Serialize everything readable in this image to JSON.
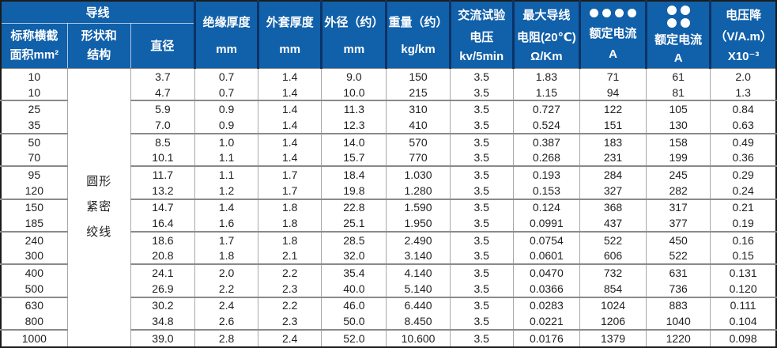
{
  "colors": {
    "header_bg": "#1160aa",
    "header_text": "#ffffff",
    "header_divider": "#0b3365",
    "body_text": "#1f1f1f",
    "grid_line": "#a8a8a8",
    "group_line": "#8a8a8a",
    "outer_border": "#1b1b1b"
  },
  "header": {
    "conductor_group": "导线",
    "columns": {
      "area": [
        "标称横截",
        "面积mm²"
      ],
      "shape": [
        "形状和",
        "结构"
      ],
      "diameter": [
        "直径"
      ],
      "insulation": [
        "绝缘厚度",
        "mm"
      ],
      "sheath": [
        "外套厚度",
        "mm"
      ],
      "outer_diameter": [
        "外径（约）",
        "mm"
      ],
      "weight": [
        "重量（约）",
        "kg/km"
      ],
      "ac_test_voltage": [
        "交流试验",
        "电压",
        "kv/5min"
      ],
      "max_resistance": [
        "最大导线",
        "电阻(20℃)",
        "Ω/Km"
      ],
      "rated_current_1": [
        "额定电流",
        "A"
      ],
      "rated_current_2": [
        "额定电流",
        "A"
      ],
      "voltage_drop": [
        "电压降",
        "（V/A.m）",
        "X10⁻³"
      ]
    },
    "icons": {
      "rated_current_1": "four-dots-row",
      "rated_current_2": "four-dots-grid"
    }
  },
  "table": {
    "shape_structure": [
      "圆形",
      "紧密",
      "绞线"
    ],
    "column_keys": [
      "area",
      "diameter",
      "insulation",
      "sheath",
      "outer_diameter",
      "weight",
      "ac_test_voltage",
      "max_resistance",
      "rated_current_1",
      "rated_current_2",
      "voltage_drop"
    ],
    "group_end_rows": [
      1,
      3,
      5,
      7,
      9,
      11,
      13,
      15
    ],
    "rows": [
      [
        "10",
        "3.7",
        "0.7",
        "1.4",
        "9.0",
        "150",
        "3.5",
        "1.83",
        "71",
        "61",
        "2.0"
      ],
      [
        "10",
        "4.7",
        "0.7",
        "1.4",
        "10.0",
        "215",
        "3.5",
        "1.15",
        "94",
        "81",
        "1.3"
      ],
      [
        "25",
        "5.9",
        "0.9",
        "1.4",
        "11.3",
        "310",
        "3.5",
        "0.727",
        "122",
        "105",
        "0.84"
      ],
      [
        "35",
        "7.0",
        "0.9",
        "1.4",
        "12.3",
        "410",
        "3.5",
        "0.524",
        "151",
        "130",
        "0.63"
      ],
      [
        "50",
        "8.5",
        "1.0",
        "1.4",
        "14.0",
        "570",
        "3.5",
        "0.387",
        "183",
        "158",
        "0.49"
      ],
      [
        "70",
        "10.1",
        "1.1",
        "1.4",
        "15.7",
        "770",
        "3.5",
        "0.268",
        "231",
        "199",
        "0.36"
      ],
      [
        "95",
        "11.7",
        "1.1",
        "1.7",
        "18.4",
        "1.030",
        "3.5",
        "0.193",
        "284",
        "245",
        "0.29"
      ],
      [
        "120",
        "13.2",
        "1.2",
        "1.7",
        "19.8",
        "1.280",
        "3.5",
        "0.153",
        "327",
        "282",
        "0.24"
      ],
      [
        "150",
        "14.7",
        "1.4",
        "1.8",
        "22.8",
        "1.590",
        "3.5",
        "0.124",
        "368",
        "317",
        "0.21"
      ],
      [
        "185",
        "16.4",
        "1.6",
        "1.8",
        "25.1",
        "1.950",
        "3.5",
        "0.0991",
        "437",
        "377",
        "0.19"
      ],
      [
        "240",
        "18.6",
        "1.7",
        "1.8",
        "28.5",
        "2.490",
        "3.5",
        "0.0754",
        "522",
        "450",
        "0.16"
      ],
      [
        "300",
        "20.8",
        "1.8",
        "2.1",
        "32.0",
        "3.140",
        "3.5",
        "0.0601",
        "606",
        "522",
        "0.15"
      ],
      [
        "400",
        "24.1",
        "2.0",
        "2.2",
        "35.4",
        "4.140",
        "3.5",
        "0.0470",
        "732",
        "631",
        "0.131"
      ],
      [
        "500",
        "26.9",
        "2.2",
        "2.3",
        "40.0",
        "5.140",
        "3.5",
        "0.0366",
        "854",
        "736",
        "0.120"
      ],
      [
        "630",
        "30.2",
        "2.4",
        "2.2",
        "46.0",
        "6.440",
        "3.5",
        "0.0283",
        "1024",
        "883",
        "0.111"
      ],
      [
        "800",
        "34.8",
        "2.6",
        "2.3",
        "50.0",
        "8.450",
        "3.5",
        "0.0221",
        "1206",
        "1040",
        "0.104"
      ],
      [
        "1000",
        "39.0",
        "2.8",
        "2.4",
        "52.0",
        "10.600",
        "3.5",
        "0.0176",
        "1379",
        "1220",
        "0.098"
      ]
    ]
  }
}
